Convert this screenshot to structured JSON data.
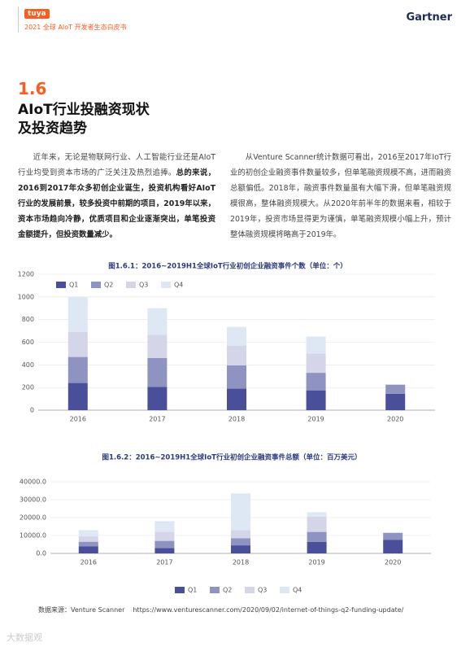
{
  "header": {
    "logo": "tuya",
    "subtitle": "2021 全球 AIoT 开发者生态白皮书",
    "brand": "Gartner"
  },
  "section": {
    "number": "1.6",
    "title": [
      "AIoT行业投融资现状",
      "及投资趋势"
    ]
  },
  "paragraphs": {
    "left": {
      "normal": "近年来，无论是物联网行业、人工智能行业还是AIoT行业均受到资本市场的广泛关注及热烈追捧。",
      "bold": "总的来说，2016到2017年众多初创企业诞生，投资机构看好AIoT行业的发展前景，较多投资中前期的项目，2019年以来，资本市场趋向冷静，优质项目和企业逐渐突出，单笔投资金额提升，但投资数量减少。"
    },
    "right": "从Venture Scanner统计数据可看出，2016至2017年IoT行业的初创企业融资事件数量较多，但单笔融资规模不高，进而融资总额偏低。2018年，融资事件数量虽有大幅下滑，但单笔融资规模很高，整体融资规模大。从2020年前半年的数据来看，相较于2019年，投资市场显得更为谨慎，单笔融资规模小幅上升，预计整体融资规模将略高于2019年。"
  },
  "chart_data": [
    {
      "type": "bar",
      "stacked": true,
      "title": "图1.6.1：2016~2019H1全球IoT行业初创企业融资事件个数（单位：个）",
      "categories": [
        "2016",
        "2017",
        "2018",
        "2019",
        "2020"
      ],
      "series": [
        {
          "name": "Q1",
          "color": "#4a4f9a",
          "values": [
            240,
            205,
            190,
            175,
            145
          ]
        },
        {
          "name": "Q2",
          "color": "#8f93c2",
          "values": [
            230,
            255,
            205,
            155,
            80
          ]
        },
        {
          "name": "Q3",
          "color": "#d5d5e9",
          "values": [
            220,
            205,
            175,
            170,
            null
          ]
        },
        {
          "name": "Q4",
          "color": "#dde8f4",
          "values": [
            310,
            235,
            165,
            150,
            null
          ]
        }
      ],
      "ylim": [
        0,
        1200
      ],
      "yticks": [
        0,
        200,
        400,
        600,
        800,
        1000,
        1200
      ],
      "grid": true,
      "legend": "top-left"
    },
    {
      "type": "bar",
      "stacked": true,
      "title": "图1.6.2：2016~2019H1全球IoT行业初创企业融资事件总额（单位：百万美元）",
      "categories": [
        "2016",
        "2017",
        "2018",
        "2019",
        "2020"
      ],
      "series": [
        {
          "name": "Q1",
          "color": "#4a4f9a",
          "values": [
            4000,
            3000,
            4500,
            6500,
            7500
          ]
        },
        {
          "name": "Q2",
          "color": "#8f93c2",
          "values": [
            2500,
            4000,
            4000,
            5500,
            4000
          ]
        },
        {
          "name": "Q3",
          "color": "#d5d5e9",
          "values": [
            3000,
            5000,
            4500,
            8500,
            null
          ]
        },
        {
          "name": "Q4",
          "color": "#dde8f4",
          "values": [
            3500,
            6000,
            20500,
            2500,
            null
          ]
        }
      ],
      "ylim": [
        0,
        40000
      ],
      "yticks": [
        {
          "value": 0,
          "label": "0.0"
        },
        {
          "value": 10000,
          "label": "10000.0"
        },
        {
          "value": 20000,
          "label": "20000.0"
        },
        {
          "value": 30000,
          "label": "30000.0"
        },
        {
          "value": 40000,
          "label": "40000.0"
        }
      ],
      "grid": true,
      "legend": "bottom"
    }
  ],
  "source": {
    "label": "数据来源：Venture Scanner",
    "url": "https://www.venturescanner.com/2020/09/02/internet-of-things-q2-funding-update/"
  },
  "watermark": "大数据观"
}
